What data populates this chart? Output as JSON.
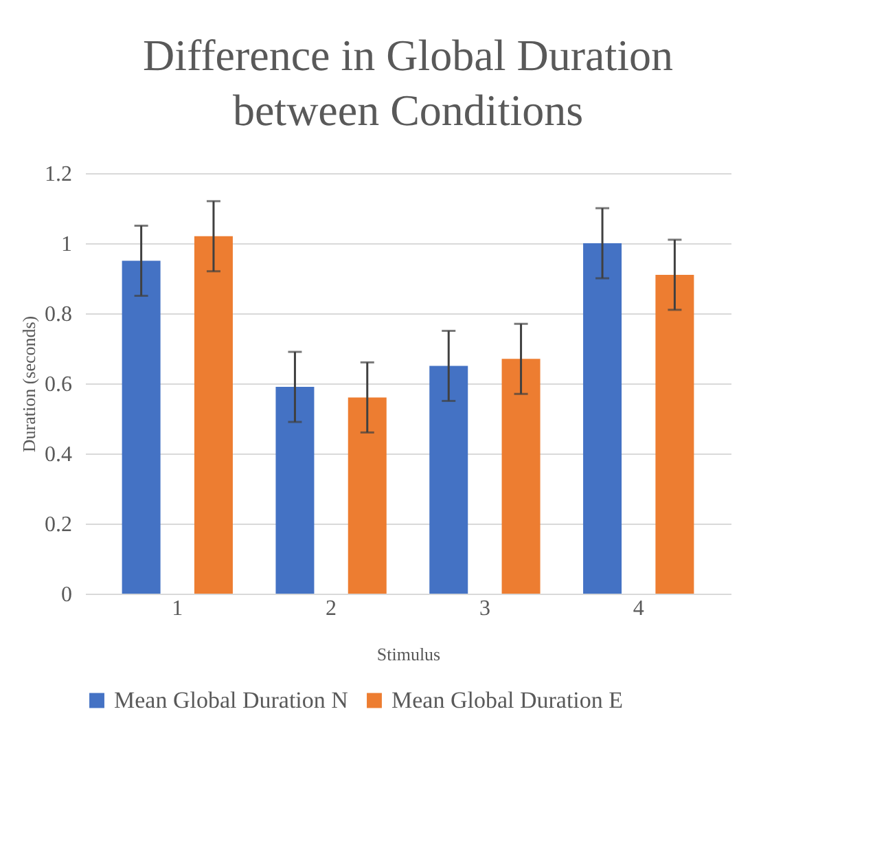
{
  "chart_data": {
    "type": "bar",
    "title": "Difference in Global Duration between Conditions",
    "xlabel": "Stimulus",
    "ylabel": "Duration (seconds)",
    "categories": [
      "1",
      "2",
      "3",
      "4"
    ],
    "series": [
      {
        "name": "Mean Global Duration N",
        "color": "#4472c4",
        "values": [
          0.95,
          0.59,
          0.65,
          1.0
        ],
        "errors": [
          0.1,
          0.1,
          0.1,
          0.1
        ]
      },
      {
        "name": "Mean Global Duration E",
        "color": "#ed7d31",
        "values": [
          1.02,
          0.56,
          0.67,
          0.91
        ],
        "errors": [
          0.1,
          0.1,
          0.1,
          0.1
        ]
      }
    ],
    "ylim": [
      0,
      1.2
    ],
    "yticks": [
      0,
      0.2,
      0.4,
      0.6,
      0.8,
      1,
      1.2
    ],
    "grid": "y",
    "legend": "bottom"
  }
}
